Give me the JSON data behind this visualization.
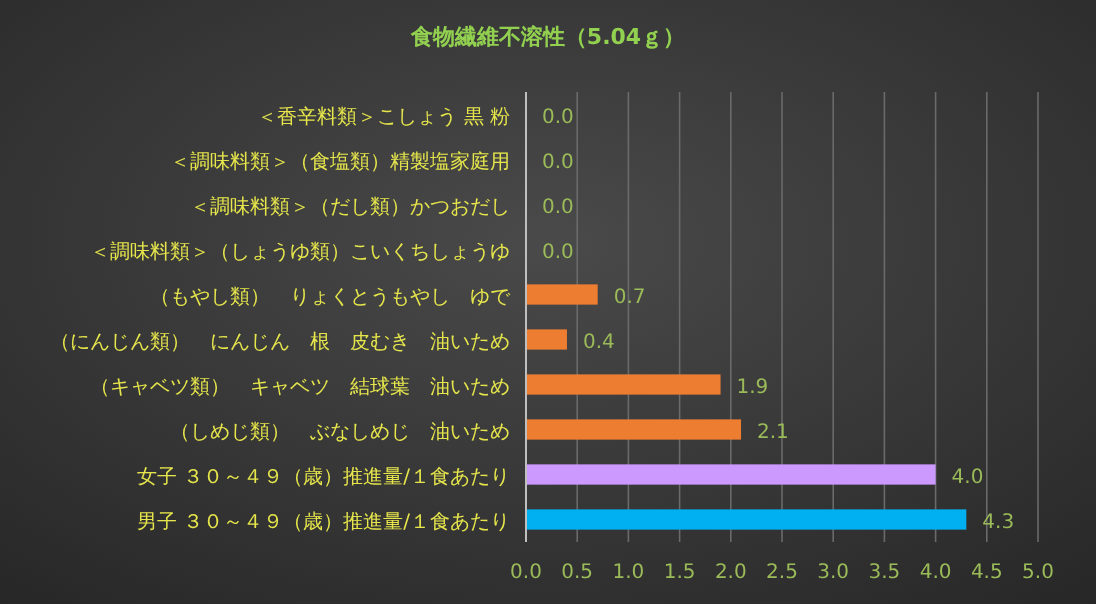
{
  "chart_data": {
    "type": "bar",
    "orientation": "horizontal",
    "title": "食物繊維不溶性（5.04ｇ）",
    "categories": [
      "＜香辛料類＞こしょう 黒 粉",
      "＜調味料類＞（食塩類）精製塩家庭用",
      "＜調味料類＞（だし類）かつおだし",
      "＜調味料類＞（しょうゆ類）こいくちしょうゆ",
      "（もやし類）　りょくとうもやし　ゆで",
      "（にんじん類）　にんじん　根　皮むき　油いため",
      "（キャベツ類）　キャベツ　結球葉　油いため",
      "（しめじ類）　ぶなしめじ　油いため",
      "女子 ３０～４９（歳）推進量/１食あたり",
      "男子 ３０～４９（歳）推進量/１食あたり"
    ],
    "values": [
      0,
      0,
      0,
      0,
      0.7,
      0.4,
      1.9,
      2.1,
      4.0,
      4.3
    ],
    "value_labels": [
      "0.0",
      "0.0",
      "0.0",
      "0.0",
      "0.7",
      "0.4",
      "1.9",
      "2.1",
      "4.0",
      "4.3"
    ],
    "colors": [
      "#ed7d31",
      "#ed7d31",
      "#ed7d31",
      "#ed7d31",
      "#ed7d31",
      "#ed7d31",
      "#ed7d31",
      "#ed7d31",
      "#cc99ff",
      "#00b0f0"
    ],
    "xlim": [
      0,
      5
    ],
    "xticks": [
      {
        "value": 0,
        "label": "0.0"
      },
      0.5,
      {
        "value": 1,
        "label": "1.0"
      },
      1.5,
      {
        "value": 2,
        "label": "2.0"
      },
      2.5,
      {
        "value": 3,
        "label": "3.0"
      },
      3.5,
      {
        "value": 4,
        "label": "4.0"
      },
      4.5,
      {
        "value": 5,
        "label": "5.0"
      }
    ],
    "grid": "x"
  }
}
